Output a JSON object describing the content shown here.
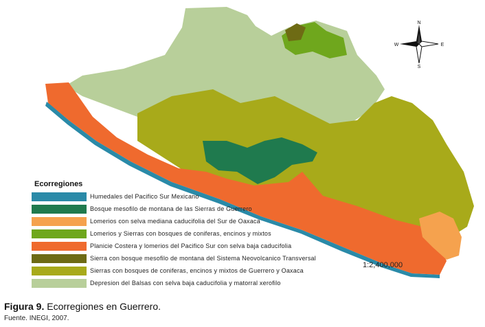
{
  "map": {
    "legend_title": "Ecorregiones",
    "legend": [
      {
        "label": "Humedales del Pacifico Sur Mexicano",
        "color": "#2a8aa8"
      },
      {
        "label": "Bosque mesofilo de montana de las Sierras de Guerrero",
        "color": "#1f7a4e"
      },
      {
        "label": "Lomerios con selva mediana caducifolia del Sur de Oaxaca",
        "color": "#f5a24e"
      },
      {
        "label": "Lomerios y Sierras con bosques de coniferas, encinos y mixtos",
        "color": "#6fa71d"
      },
      {
        "label": "Planicie Costera y lomerios del Pacifico Sur con selva baja caducifolia",
        "color": "#ef6a2e"
      },
      {
        "label": "Sierra con bosque mesofilo de montana del Sistema Neovolcanico Transversal",
        "color": "#6e6b14"
      },
      {
        "label": "Sierras con bosques de coniferas, encinos y mixtos de Guerrero y Oaxaca",
        "color": "#a8aa1a"
      },
      {
        "label": "Depresion del Balsas con selva baja caducifolia y matorral xerofilo",
        "color": "#b8cf9a"
      }
    ],
    "scale": "1:2,400,000",
    "compass": {
      "n": "N",
      "s": "S",
      "e": "E",
      "w": "W"
    }
  },
  "figure": {
    "label": "Figura 9.",
    "caption": " Ecorregiones en Guerrero.",
    "source": "Fuente. INEGI, 2007."
  }
}
